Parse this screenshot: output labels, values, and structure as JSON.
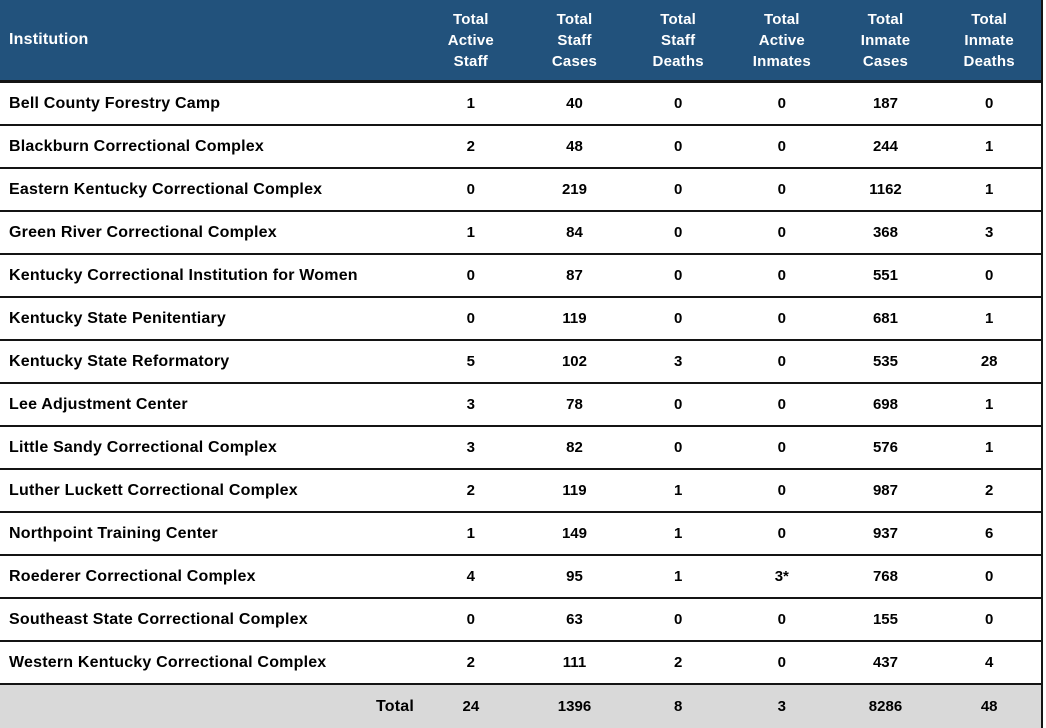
{
  "colors": {
    "header_bg": "#22527C",
    "header_text": "#FFFFFF",
    "row_text": "#000000",
    "total_bg": "#D9D9D9",
    "divider": "#141414"
  },
  "header": {
    "institution_label": "Institution",
    "column_labels_multiline": [
      "Total\nActive\nStaff",
      "Total\nStaff\nCases",
      "Total\nStaff\nDeaths",
      "Total\nActive\nInmates",
      "Total\nInmate\nCases",
      "Total\nInmate\nDeaths"
    ]
  },
  "chart_data": {
    "type": "table",
    "columns": [
      "Institution",
      "Total Active Staff",
      "Total Staff Cases",
      "Total Staff Deaths",
      "Total Active Inmates",
      "Total Inmate Cases",
      "Total Inmate Deaths"
    ],
    "rows": [
      {
        "institution": "Bell County Forestry Camp",
        "values": [
          "1",
          "40",
          "0",
          "0",
          "187",
          "0"
        ]
      },
      {
        "institution": "Blackburn Correctional Complex",
        "values": [
          "2",
          "48",
          "0",
          "0",
          "244",
          "1"
        ]
      },
      {
        "institution": "Eastern Kentucky Correctional Complex",
        "values": [
          "0",
          "219",
          "0",
          "0",
          "1162",
          "1"
        ]
      },
      {
        "institution": "Green River Correctional Complex",
        "values": [
          "1",
          "84",
          "0",
          "0",
          "368",
          "3"
        ]
      },
      {
        "institution": "Kentucky Correctional Institution for Women",
        "values": [
          "0",
          "87",
          "0",
          "0",
          "551",
          "0"
        ]
      },
      {
        "institution": "Kentucky State Penitentiary",
        "values": [
          "0",
          "119",
          "0",
          "0",
          "681",
          "1"
        ]
      },
      {
        "institution": "Kentucky State Reformatory",
        "values": [
          "5",
          "102",
          "3",
          "0",
          "535",
          "28"
        ]
      },
      {
        "institution": "Lee Adjustment Center",
        "values": [
          "3",
          "78",
          "0",
          "0",
          "698",
          "1"
        ]
      },
      {
        "institution": "Little Sandy Correctional Complex",
        "values": [
          "3",
          "82",
          "0",
          "0",
          "576",
          "1"
        ]
      },
      {
        "institution": "Luther Luckett Correctional Complex",
        "values": [
          "2",
          "119",
          "1",
          "0",
          "987",
          "2"
        ]
      },
      {
        "institution": "Northpoint Training Center",
        "values": [
          "1",
          "149",
          "1",
          "0",
          "937",
          "6"
        ]
      },
      {
        "institution": "Roederer Correctional Complex",
        "values": [
          "4",
          "95",
          "1",
          "3*",
          "768",
          "0"
        ]
      },
      {
        "institution": "Southeast State Correctional Complex",
        "values": [
          "0",
          "63",
          "0",
          "0",
          "155",
          "0"
        ]
      },
      {
        "institution": "Western Kentucky Correctional Complex",
        "values": [
          "2",
          "111",
          "2",
          "0",
          "437",
          "4"
        ]
      }
    ],
    "total_row": {
      "label": "Total",
      "values": [
        "24",
        "1396",
        "8",
        "3",
        "8286",
        "48"
      ]
    }
  }
}
